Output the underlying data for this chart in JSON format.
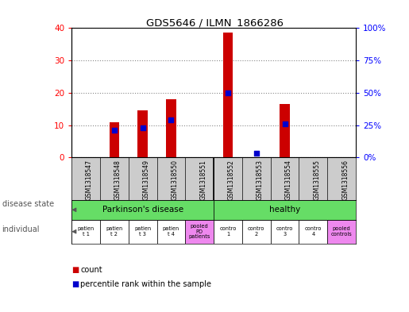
{
  "title": "GDS5646 / ILMN_1866286",
  "samples": [
    "GSM1318547",
    "GSM1318548",
    "GSM1318549",
    "GSM1318550",
    "GSM1318551",
    "GSM1318552",
    "GSM1318553",
    "GSM1318554",
    "GSM1318555",
    "GSM1318556"
  ],
  "count_values": [
    0,
    11,
    14.5,
    18,
    0,
    38.5,
    0,
    16.5,
    0,
    0
  ],
  "percentile_values": [
    0,
    21,
    23,
    29,
    0,
    50,
    3,
    26,
    0,
    0
  ],
  "ylim_left": [
    0,
    40
  ],
  "ylim_right": [
    0,
    100
  ],
  "yticks_left": [
    0,
    10,
    20,
    30,
    40
  ],
  "ytick_labels_left": [
    "0",
    "10",
    "20",
    "30",
    "40"
  ],
  "yticks_right": [
    0,
    25,
    50,
    75,
    100
  ],
  "ytick_labels_right": [
    "0%",
    "25%",
    "50%",
    "75%",
    "100%"
  ],
  "bar_color": "#cc0000",
  "dot_color": "#0000cc",
  "bar_width": 0.35,
  "dot_size": 20,
  "individual_labels": [
    "patien\nt 1",
    "patien\nt 2",
    "patien\nt 3",
    "patien\nt 4",
    "pooled\nPD\npatients",
    "contro\n1",
    "contro\n2",
    "contro\n3",
    "contro\n4",
    "pooled\ncontrols"
  ],
  "individual_colors": [
    "#ffffff",
    "#ffffff",
    "#ffffff",
    "#ffffff",
    "#ee88ee",
    "#ffffff",
    "#ffffff",
    "#ffffff",
    "#ffffff",
    "#ee88ee"
  ],
  "disease_state_label": "disease state",
  "individual_label": "individual",
  "legend_count": "count",
  "legend_percentile": "percentile rank within the sample",
  "bg_color": "#ffffff",
  "grid_color": "#888888",
  "sample_bg_color": "#cccccc",
  "green_color": "#66dd66",
  "pink_color": "#ee88ee"
}
